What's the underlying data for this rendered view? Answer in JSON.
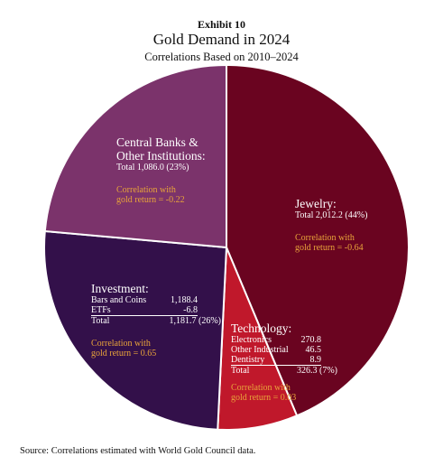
{
  "header": {
    "exhibit": "Exhibit 10",
    "title": "Gold Demand in 2024",
    "subtitle": "Correlations Based on 2010–2024"
  },
  "chart_data": {
    "type": "pie",
    "title": "Gold Demand in 2024",
    "subtitle": "Correlations Based on 2010–2024",
    "slices": [
      {
        "name": "Jewelry",
        "value": 2012.2,
        "percent": 44,
        "color": "#6a0420"
      },
      {
        "name": "Technology",
        "value": 326.3,
        "percent": 7,
        "color": "#c0182b"
      },
      {
        "name": "Investment",
        "value": 1181.7,
        "percent": 26,
        "color": "#33104a"
      },
      {
        "name": "Central Banks & Other Institutions",
        "value": 1086.0,
        "percent": 23,
        "color": "#7b336b"
      }
    ]
  },
  "labels": {
    "jewelry": {
      "head": "Jewelry:",
      "total": "Total 2,012.2 (44%)",
      "corr1": "Correlation with",
      "corr2": "gold return = -0.64"
    },
    "central_banks": {
      "head1": "Central Banks &",
      "head2": "Other Institutions:",
      "total": "Total 1,086.0 (23%)",
      "corr1": "Correlation with",
      "corr2": "gold return = -0.22"
    },
    "investment": {
      "head": "Investment:",
      "rows": [
        {
          "k": "Bars and Coins",
          "v": "1,188.4"
        },
        {
          "k": "ETFs",
          "v": "-6.8"
        },
        {
          "k": "Total",
          "v": "1,181.7 (26%)"
        }
      ],
      "corr1": "Correlation with",
      "corr2": "gold return = 0.65"
    },
    "technology": {
      "head": "Technology:",
      "rows": [
        {
          "k": "Electronics",
          "v": "270.8"
        },
        {
          "k": "Other Industrial",
          "v": "46.5"
        },
        {
          "k": "Dentistry",
          "v": "8.9"
        },
        {
          "k": "Total",
          "v": "326.3 (7%)"
        }
      ],
      "corr1": "Correlation with",
      "corr2": "gold return = 0.03"
    }
  },
  "source": "Source: Correlations estimated with World Gold Council data."
}
